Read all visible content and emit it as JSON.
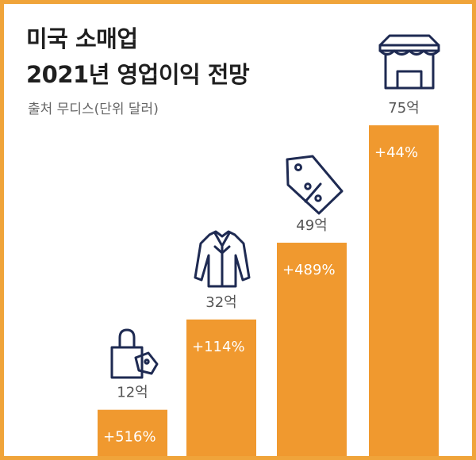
{
  "title_line1": "미국 소매업",
  "title_line2": "2021년 영업이익 전망",
  "source": "출처 무디스(단위 달러)",
  "chart_data": {
    "type": "bar",
    "title": "미국 소매업 2021년 영업이익 전망",
    "subtitle": "출처 무디스(단위 달러)",
    "unit": "달러",
    "categories": [
      "shopping-bag",
      "shirt",
      "price-tag",
      "storefront"
    ],
    "values": [
      12,
      32,
      49,
      75
    ],
    "value_labels": [
      "12억",
      "32억",
      "49억",
      "75억"
    ],
    "change_labels": [
      "+516%",
      "+114%",
      "+489%",
      "+44%"
    ],
    "bar_color": "#f0992f",
    "icons": [
      "shopping-bag-icon",
      "shirt-icon",
      "price-tag-icon",
      "storefront-icon"
    ],
    "xlabel": "",
    "ylabel": "",
    "ylim": [
      0,
      80
    ],
    "grid": false,
    "legend": "none"
  }
}
